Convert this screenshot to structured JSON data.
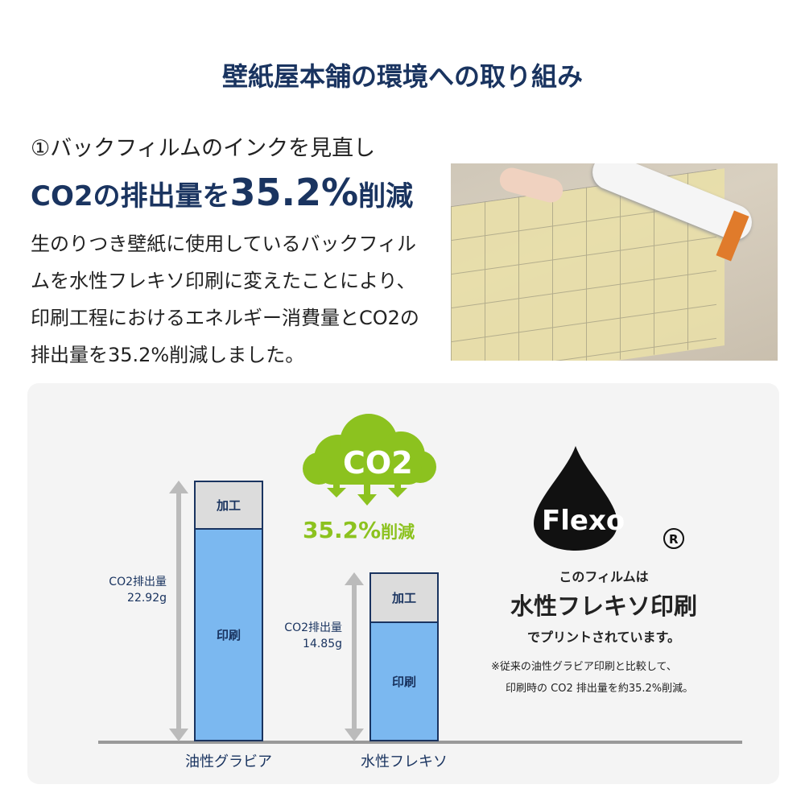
{
  "title": "壁紙屋本舗の環境への取り組み",
  "section": {
    "subtitle": "①バックフィルムのインクを見直し",
    "headline_pre": "CO2の排出量を",
    "headline_value": "35.2%",
    "headline_post": "削減",
    "body": "生のりつき壁紙に使用しているバックフィルムを水性フレキソ印刷に変えたことにより、印刷工程におけるエネルギー消費量とCO2の排出量を35.2%削減しました。"
  },
  "photo": {
    "description_icon": "wallpaper-roll-photo"
  },
  "badge": {
    "cloud_text": "CO2",
    "reduction": "35.2%",
    "reduction_suffix": "削減",
    "color": "#8cc21f"
  },
  "flexo": {
    "logo_text": "Flexo",
    "registered": "®",
    "line1": "このフィルムは",
    "line2": "水性フレキソ印刷",
    "line3": "でプリントされています。",
    "note1": "※従来の油性グラビア印刷と比較して、",
    "note2": "印刷時の CO2 排出量を約35.2%削減。"
  },
  "chart_data": {
    "type": "bar",
    "stacked": true,
    "categories": [
      "油性グラビア",
      "水性フレキソ"
    ],
    "series": [
      {
        "name": "印刷",
        "values": [
          18.7,
          10.5
        ]
      },
      {
        "name": "加工",
        "values": [
          4.2,
          4.4
        ]
      }
    ],
    "totals": [
      22.92,
      14.85
    ],
    "total_labels": [
      {
        "label": "CO2排出量",
        "value": "22.92g"
      },
      {
        "label": "CO2排出量",
        "value": "14.85g"
      }
    ],
    "colors": {
      "印刷": "#7bb8f0",
      "加工": "#dcdcdc"
    },
    "ylim": [
      0,
      22.92
    ],
    "grid": false
  }
}
